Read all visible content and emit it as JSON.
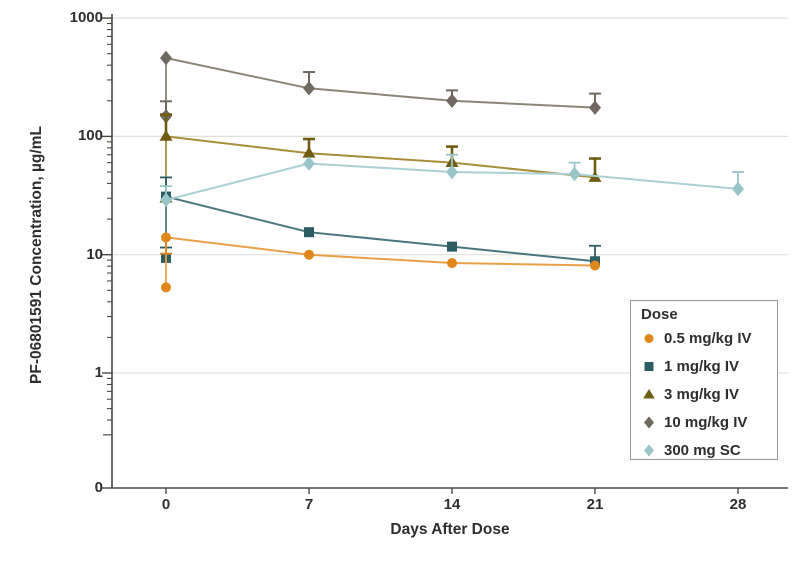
{
  "figure": {
    "background": "#ffffff",
    "axis_color": "#4a4843",
    "grid_color": "#e0e0db",
    "text_color": "#2e2e2c"
  },
  "legend": {
    "title": "Dose"
  },
  "chart_data": {
    "type": "line",
    "title": "",
    "xlabel": "Days After Dose",
    "ylabel": "PF-06801591 Concentration, µg/mL",
    "x_ticks": [
      0,
      7,
      14,
      21,
      28
    ],
    "y_ticks": [
      "1000",
      "100",
      "10",
      "1",
      "0"
    ],
    "y_tick_values": [
      1000,
      100,
      10,
      1,
      0
    ],
    "y_scale": "log (broken axis to 0)",
    "grid": "horizontal gridlines at decades",
    "legend_position": "lower right",
    "series": [
      {
        "name": "10 mg/kg IV",
        "marker": "diamond",
        "color": "#6f6a60",
        "line_color": "#8b8679",
        "points": [
          {
            "x": 0,
            "y": 460
          },
          {
            "x": 7,
            "y": 255,
            "err_hi": 350
          },
          {
            "x": 14,
            "y": 200,
            "err_hi": 245
          },
          {
            "x": 21,
            "y": 175,
            "err_hi": 230
          }
        ],
        "predose": {
          "x": 0,
          "y": 148,
          "err_hi": 198
        }
      },
      {
        "name": "3 mg/kg IV",
        "marker": "triangle",
        "color": "#6e5c10",
        "line_color": "#a78e3b",
        "points": [
          {
            "x": 0,
            "y": 100,
            "err_hi": 153
          },
          {
            "x": 7,
            "y": 72,
            "err_hi": 95
          },
          {
            "x": 14,
            "y": 60,
            "err_hi": 82
          },
          {
            "x": 21,
            "y": 45,
            "err_hi": 65
          }
        ],
        "predose": {
          "x": 0,
          "y": 30
        }
      },
      {
        "name": "1 mg/kg IV",
        "marker": "square",
        "color": "#2b5d63",
        "line_color": "#49767c",
        "points": [
          {
            "x": 0,
            "y": 31,
            "err_hi": 45
          },
          {
            "x": 7,
            "y": 15.5
          },
          {
            "x": 14,
            "y": 11.7
          },
          {
            "x": 21,
            "y": 8.8,
            "err_hi": 11.9
          }
        ],
        "predose": {
          "x": 0,
          "y": 9.4,
          "err_hi": 11.5
        }
      },
      {
        "name": "0.5 mg/kg IV",
        "marker": "circle",
        "color": "#e1861c",
        "line_color": "#e9a149",
        "points": [
          {
            "x": 0,
            "y": 14,
            "err_lo": 10.2
          },
          {
            "x": 7,
            "y": 10
          },
          {
            "x": 14,
            "y": 8.5
          },
          {
            "x": 21,
            "y": 8.1
          }
        ],
        "predose": {
          "x": 0,
          "y": 5.3
        }
      },
      {
        "name": "300 mg SC",
        "marker": "diamond",
        "color": "#99c5c9",
        "line_color": "#abd0d3",
        "points": [
          {
            "x": 0,
            "y": 29,
            "err_hi": 38
          },
          {
            "x": 7,
            "y": 59
          },
          {
            "x": 14,
            "y": 50,
            "err_hi": 70
          },
          {
            "x": 20,
            "y": 48,
            "err_hi": 60
          },
          {
            "x": 28,
            "y": 36,
            "err_hi": 50
          }
        ]
      }
    ],
    "legend_order": [
      "0.5 mg/kg IV",
      "1 mg/kg IV",
      "3 mg/kg IV",
      "10 mg/kg IV",
      "300 mg SC"
    ]
  }
}
